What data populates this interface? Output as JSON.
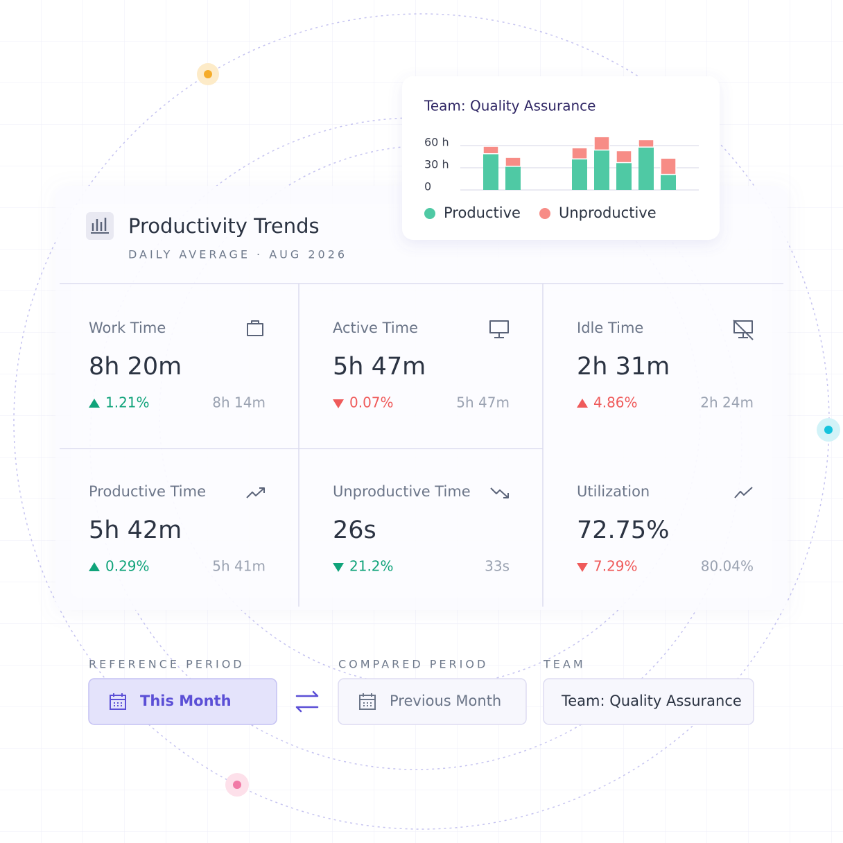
{
  "header": {
    "title": "Productivity Trends",
    "subtitle": "DAILY AVERAGE · AUG 2026"
  },
  "metrics": [
    {
      "label": "Work Time",
      "value": "8h 20m",
      "change": "1.21%",
      "direction": "up",
      "tone": "good",
      "previous": "8h 14m"
    },
    {
      "label": "Active Time",
      "value": "5h 47m",
      "change": "0.07%",
      "direction": "down",
      "tone": "bad",
      "previous": "5h 47m"
    },
    {
      "label": "Idle Time",
      "value": "2h 31m",
      "change": "4.86%",
      "direction": "up",
      "tone": "bad",
      "previous": "2h 24m"
    },
    {
      "label": "Productive Time",
      "value": "5h 42m",
      "change": "0.29%",
      "direction": "up",
      "tone": "good",
      "previous": "5h 41m"
    },
    {
      "label": "Unproductive Time",
      "value": "26s",
      "change": "21.2%",
      "direction": "down",
      "tone": "good",
      "previous": "33s"
    },
    {
      "label": "Utilization",
      "value": "72.75%",
      "change": "7.29%",
      "direction": "down",
      "tone": "bad",
      "previous": "80.04%"
    }
  ],
  "filters": [
    {
      "label": "REFERENCE PERIOD",
      "value": "This Month",
      "active": true
    },
    {
      "label": "COMPARED PERIOD",
      "value": "Previous Month",
      "active": false
    },
    {
      "label": "TEAM",
      "value": "Team: Quality Assurance",
      "active": false
    }
  ],
  "chart_data": {
    "type": "bar",
    "stacked": true,
    "title": "Team: Quality Assurance",
    "categories": [
      null,
      null,
      null,
      null,
      null,
      null,
      null,
      null,
      null
    ],
    "series": [
      {
        "name": "Productive",
        "color": "#4fc9a4",
        "values": [
          49,
          32,
          null,
          null,
          42,
          54,
          37,
          58,
          21
        ]
      },
      {
        "name": "Unproductive",
        "color": "#f78c86",
        "values": [
          10,
          12,
          null,
          null,
          15,
          18,
          16,
          10,
          22
        ]
      }
    ],
    "ylim": [
      0,
      75
    ],
    "yticks": [
      0,
      {
        "value": 30,
        "label": "30 h"
      },
      {
        "value": 60,
        "label": "60 h"
      }
    ],
    "grid": true
  }
}
